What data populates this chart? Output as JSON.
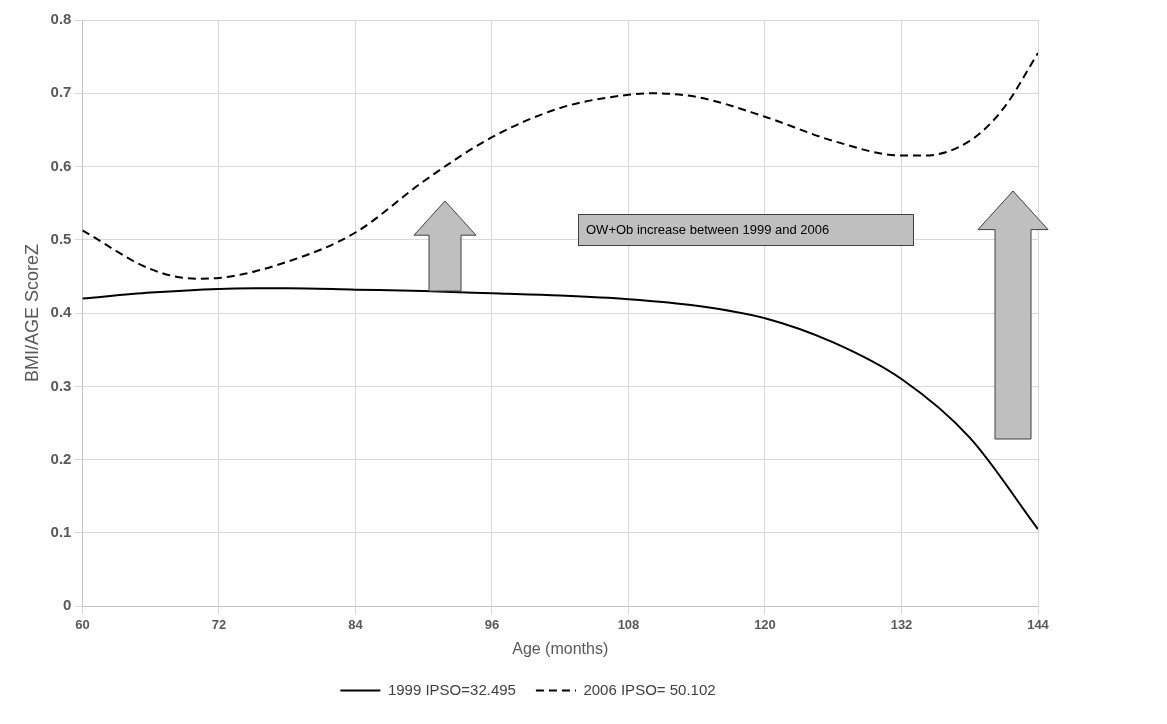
{
  "chart_data": {
    "type": "line",
    "xlabel": "Age (months)",
    "ylabel": "BMI/AGE ScoreZ",
    "xlim": [
      60,
      144
    ],
    "xticks": [
      60,
      72,
      84,
      96,
      108,
      120,
      132,
      144
    ],
    "ylim": [
      0,
      0.8
    ],
    "yticks": [
      0,
      0.1,
      0.2,
      0.3,
      0.4,
      0.5,
      0.6,
      0.7,
      0.8
    ],
    "grid": true,
    "legend": "bottom",
    "marker": "none",
    "annotations": [
      "OW+Ob increase between 1999 and 2006"
    ],
    "series": [
      {
        "name": "1999 IPSO=32.495",
        "color": "#000000",
        "line_style": "solid",
        "x": [
          60,
          66,
          72,
          78,
          84,
          90,
          96,
          102,
          108,
          114,
          120,
          126,
          132,
          138,
          144
        ],
        "values": [
          0.42,
          0.428,
          0.433,
          0.434,
          0.432,
          0.43,
          0.427,
          0.424,
          0.419,
          0.41,
          0.393,
          0.36,
          0.31,
          0.23,
          0.105
        ]
      },
      {
        "name": "2006 IPSO= 50.102",
        "color": "#000000",
        "line_style": "dashed",
        "x": [
          60,
          66,
          70,
          72,
          78,
          84,
          90,
          96,
          102,
          108,
          110,
          114,
          120,
          126,
          132,
          134,
          138,
          141,
          144
        ],
        "values": [
          0.513,
          0.46,
          0.447,
          0.448,
          0.47,
          0.51,
          0.58,
          0.64,
          0.68,
          0.698,
          0.7,
          0.695,
          0.668,
          0.635,
          0.615,
          0.615,
          0.635,
          0.68,
          0.755
        ]
      }
    ]
  }
}
